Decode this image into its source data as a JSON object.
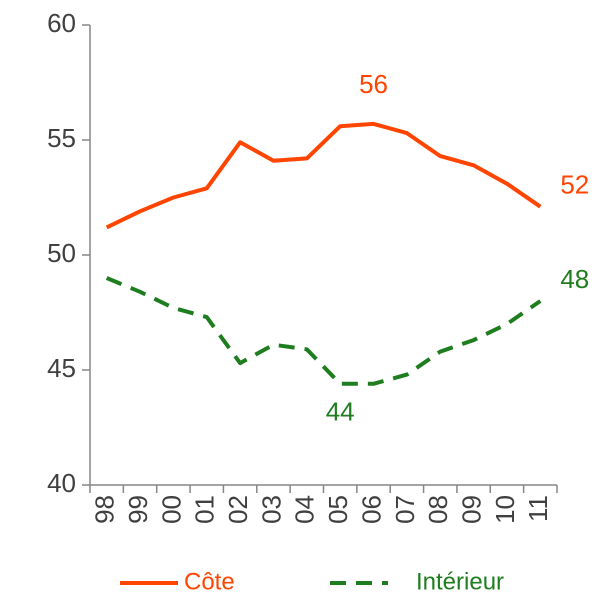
{
  "chart_data": {
    "type": "line",
    "categories": [
      "98",
      "99",
      "00",
      "01",
      "02",
      "03",
      "04",
      "05",
      "06",
      "07",
      "08",
      "09",
      "10",
      "11"
    ],
    "series": [
      {
        "name": "Côte",
        "color": "#ff4500",
        "dash": false,
        "values": [
          51.2,
          51.9,
          52.5,
          52.9,
          54.9,
          54.1,
          54.2,
          55.6,
          55.7,
          55.3,
          54.3,
          53.9,
          53.1,
          52.1
        ],
        "value_labels": [
          null,
          null,
          null,
          null,
          null,
          null,
          null,
          null,
          "56",
          null,
          null,
          null,
          null,
          "52"
        ]
      },
      {
        "name": "Intérieur",
        "color": "#1e7d1e",
        "dash": true,
        "values": [
          49.0,
          48.4,
          47.7,
          47.3,
          45.3,
          46.1,
          45.9,
          44.4,
          44.4,
          44.8,
          45.8,
          46.3,
          47.0,
          48.0
        ],
        "value_labels": [
          null,
          null,
          null,
          null,
          null,
          null,
          null,
          "44",
          null,
          null,
          null,
          null,
          null,
          "48"
        ]
      }
    ],
    "ylim": [
      40,
      60
    ],
    "yticks": [
      40,
      45,
      50,
      55,
      60
    ],
    "grid": false,
    "legend": "bottom"
  }
}
